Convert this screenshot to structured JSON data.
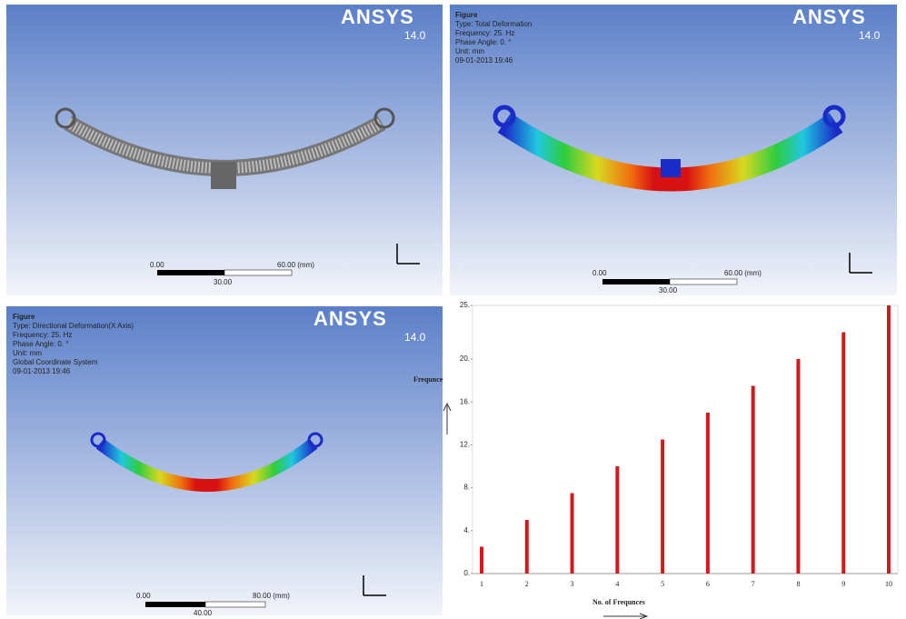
{
  "panels": [
    {
      "logo": "ANSYS",
      "version": "14.0",
      "scale": [
        "0.00",
        "60.00 (mm)",
        "30.00"
      ]
    },
    {
      "logo": "ANSYS",
      "version": "14.0",
      "info": [
        "Figure",
        "Type: Total Deformation",
        "Frequency: 25. Hz",
        "Phase Angle: 0. °",
        "Unit: mm",
        "09-01-2013 19:46"
      ],
      "scale": [
        "0.00",
        "60.00 (mm)",
        "30.00"
      ]
    },
    {
      "logo": "ANSYS",
      "version": "14.0",
      "info": [
        "Figure",
        "Type: Directional Deformation(X Axis)",
        "Frequency: 25. Hz",
        "Phase Angle: 0. °",
        "Unit: mm",
        "Global Coordinate System",
        "09-01-2013 19:46"
      ],
      "scale": [
        "0.00",
        "80.00 (mm)",
        "40.00"
      ]
    }
  ],
  "chart_data": {
    "type": "bar",
    "y_label": "Frequnce",
    "x_label": "No. of Frequnces",
    "categories": [
      "1",
      "2",
      "3",
      "4",
      "5",
      "6",
      "7",
      "8",
      "9",
      "10"
    ],
    "values": [
      2.5,
      5,
      7.5,
      10,
      12.5,
      15,
      17.5,
      20,
      22.5,
      25
    ],
    "color": "#d11a1a",
    "ylim": [
      0,
      25
    ],
    "yticks": [
      {
        "value": 0,
        "label": "0."
      },
      {
        "value": 4,
        "label": "4."
      },
      {
        "value": 8,
        "label": "8."
      },
      {
        "value": 12,
        "label": "12."
      },
      {
        "value": 16,
        "label": "16."
      },
      {
        "value": 20,
        "label": "20."
      },
      {
        "value": 25,
        "label": "25."
      }
    ]
  }
}
